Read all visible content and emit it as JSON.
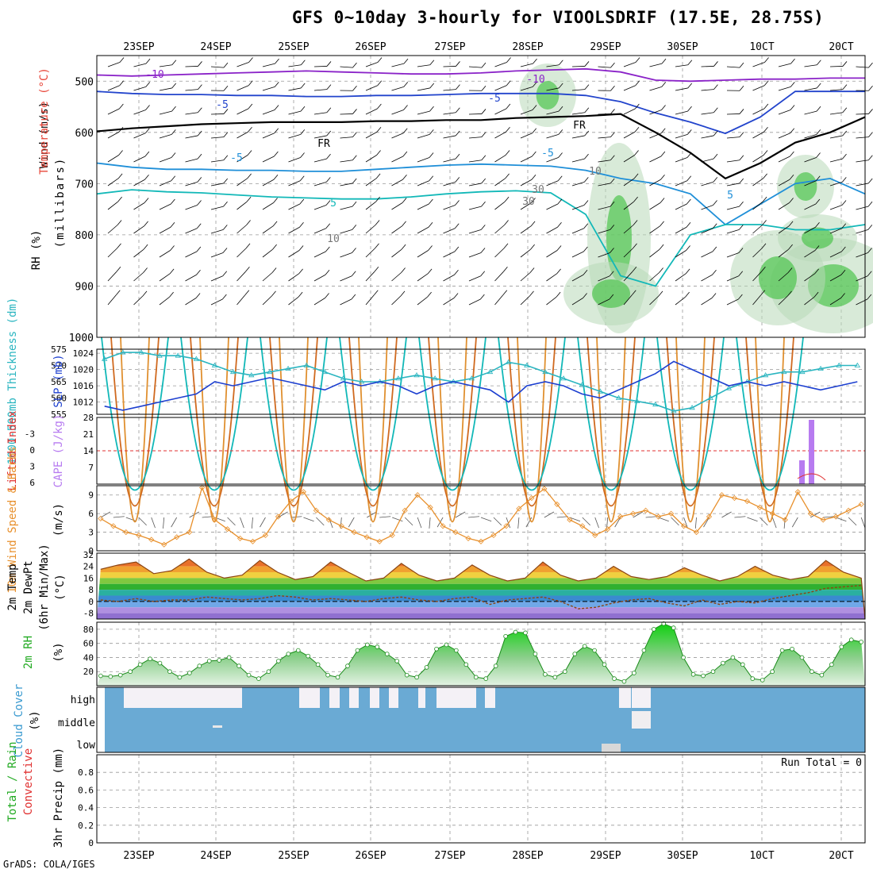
{
  "title": "GFS 0~10day 3-hourly for VIOOLSDRIF (17.5E, 28.75S)",
  "credit": "GrADS: COLA/IGES",
  "colors": {
    "rh_green": "#3cb44b",
    "temp_red": "#e8473a",
    "wind_black": "#000000",
    "slp_blue": "#1c3fd0",
    "thick_cyan": "#2ab5c0",
    "cape_purple": "#b77bf0",
    "li_red": "#e03030",
    "rh2m_green": "#22aa22",
    "cloud_blue": "#6aaad4",
    "cloud_white": "#f4f1f6",
    "conv_red": "#e03030",
    "total_green": "#22aa22"
  },
  "chart_data": [
    {
      "type": "heatmap",
      "name_panel": "upper-air",
      "ylabel": [
        "Wind (m/s)",
        "Temperature (°C)",
        "RH (%)"
      ],
      "yunit": "(millibars)",
      "x_ticks": [
        "23SEP",
        "24SEP",
        "25SEP",
        "26SEP",
        "27SEP",
        "28SEP",
        "29SEP",
        "30SEP",
        "1OCT",
        "2OCT"
      ],
      "x_tick_labels_printed": [
        "23SEP",
        "24SEP",
        "25SEP",
        "26SEP",
        "27SEP",
        "28SEP",
        "29SEP",
        "30SEP",
        "10CT",
        "20CT"
      ],
      "y_ticks": [
        500,
        600,
        700,
        800,
        900,
        1000
      ],
      "ylim": [
        450,
        1000
      ],
      "isotherm_labels": [
        "-10",
        "-10",
        "-5",
        "-5",
        "FR",
        "FR",
        "-5",
        "-5",
        "5",
        "5",
        "10",
        "30",
        "30",
        "10",
        "-5",
        "10"
      ],
      "isotherms": [
        {
          "label": "-10",
          "color": "#8a22c8",
          "p": [
            488,
            490,
            488,
            486,
            484,
            482,
            480,
            482,
            484,
            486,
            486,
            484,
            480,
            478,
            476,
            482,
            498,
            500,
            498,
            496,
            496,
            494,
            494
          ]
        },
        {
          "label": "-5",
          "color": "#2244cc",
          "p": [
            520,
            524,
            526,
            526,
            528,
            528,
            530,
            530,
            528,
            528,
            526,
            524,
            524,
            524,
            528,
            540,
            562,
            580,
            602,
            570,
            520,
            520,
            520
          ]
        },
        {
          "label": "FR",
          "color": "#000000",
          "p": [
            598,
            592,
            588,
            584,
            582,
            580,
            580,
            580,
            578,
            578,
            576,
            576,
            572,
            570,
            568,
            564,
            600,
            640,
            690,
            660,
            620,
            600,
            570
          ]
        },
        {
          "label": "5",
          "color": "#1f8fd8",
          "p": [
            660,
            668,
            672,
            672,
            674,
            674,
            676,
            676,
            672,
            668,
            664,
            662,
            664,
            666,
            674,
            690,
            700,
            720,
            780,
            740,
            700,
            690,
            720
          ]
        },
        {
          "label": "10",
          "color": "#12b8b8",
          "p": [
            720,
            712,
            716,
            718,
            722,
            726,
            728,
            730,
            730,
            726,
            720,
            716,
            714,
            718,
            760,
            880,
            900,
            800,
            780,
            780,
            790,
            790,
            780
          ]
        }
      ]
    },
    {
      "type": "line",
      "name_panel": "slp-thickness",
      "ylabel_left": "1000-500mb Thickness (dm)",
      "ylabel_right": "SLP (mb)",
      "left_ticks": [
        555,
        560,
        565,
        570,
        575
      ],
      "right_ticks": [
        1012,
        1016,
        1020,
        1024
      ],
      "left_range": [
        555,
        575
      ],
      "right_range": [
        1009,
        1025
      ],
      "series": [
        {
          "name": "1000-500mb Thickness",
          "color": "#2ab5c0",
          "axis": "left",
          "values": [
            572,
            574,
            574,
            573,
            573,
            572,
            570,
            568,
            567,
            568,
            569,
            570,
            568,
            566,
            565,
            565,
            566,
            567,
            566,
            565,
            566,
            568,
            571,
            570,
            568,
            566,
            564,
            562,
            560,
            559,
            558,
            556,
            557,
            560,
            563,
            565,
            567,
            568,
            568,
            569,
            570,
            570
          ]
        },
        {
          "name": "SLP",
          "color": "#1c3fd0",
          "axis": "right",
          "values": [
            1011,
            1010,
            1011,
            1012,
            1013,
            1014,
            1017,
            1016,
            1017,
            1018,
            1017,
            1016,
            1015,
            1017,
            1016,
            1017,
            1016,
            1014,
            1016,
            1017,
            1016,
            1015,
            1012,
            1016,
            1017,
            1016,
            1014,
            1013,
            1015,
            1017,
            1019,
            1022,
            1020,
            1018,
            1016,
            1017,
            1016,
            1017,
            1016,
            1015,
            1016,
            1017
          ]
        }
      ]
    },
    {
      "type": "bar",
      "name_panel": "cape-li",
      "ylabel_left": "Lifted Index",
      "ylabel_right": "CAPE (J/kg)",
      "cape_ticks": [
        7,
        14,
        21,
        28
      ],
      "li_ticks": [
        -3,
        0,
        3,
        6
      ],
      "li_tick_labels": [
        "-3",
        "0",
        "3",
        "6"
      ],
      "cape_range": [
        0,
        28
      ],
      "cape_bars": [
        {
          "x": "2OCT-0.45",
          "value": 10
        },
        {
          "x": "2OCT-0.35",
          "value": 27
        }
      ],
      "li_zero_line": 0
    },
    {
      "type": "line",
      "name_panel": "10m-wind",
      "ylabel": "10m Wind Speed & Barbs",
      "yunit": "(m/s)",
      "y_ticks": [
        0,
        3,
        6,
        9
      ],
      "ylim": [
        0,
        10.5
      ],
      "series": [
        {
          "name": "10m Wind Speed",
          "color": "#e8902c",
          "values": [
            5.2,
            4.0,
            3.0,
            2.5,
            1.8,
            1.0,
            2.2,
            3.0,
            10.2,
            5.0,
            3.5,
            2.0,
            1.5,
            2.5,
            5.5,
            8.0,
            9.5,
            6.5,
            5.0,
            4.0,
            3.0,
            2.2,
            1.5,
            2.5,
            6.5,
            9.0,
            7.0,
            4.0,
            3.0,
            2.0,
            1.5,
            2.5,
            4.0,
            6.8,
            8.5,
            10.0,
            7.5,
            5.0,
            4.0,
            2.5,
            3.5,
            5.5,
            6.0,
            6.5,
            5.5,
            6.0,
            4.0,
            3.0,
            5.5,
            9.0,
            8.5,
            8.0,
            7.0,
            6.0,
            5.0,
            9.5,
            6.0,
            5.0,
            5.5,
            6.5,
            7.5
          ]
        }
      ]
    },
    {
      "type": "area",
      "name_panel": "2m-temp",
      "ylabel": [
        "2m Temp",
        "2m DewPt",
        "(6hr Min/Max)"
      ],
      "yunit": "(°C)",
      "y_ticks": [
        -8,
        0,
        8,
        16,
        24,
        32
      ],
      "ylim": [
        -12,
        33
      ],
      "series": [
        {
          "name": "2m Temp",
          "color": "#8b4513",
          "values": [
            22,
            25,
            27,
            19,
            21,
            29,
            20,
            16,
            18,
            28,
            20,
            15,
            17,
            27,
            20,
            14,
            16,
            26,
            18,
            14,
            16,
            25,
            18,
            14,
            16,
            27,
            18,
            14,
            16,
            24,
            17,
            15,
            17,
            23,
            18,
            14,
            17,
            24,
            18,
            15,
            17,
            28,
            20,
            16
          ]
        },
        {
          "name": "2m DewPt",
          "color": "#8b4513",
          "values": [
            1,
            0,
            2,
            0,
            1,
            1,
            3,
            2,
            1,
            2,
            4,
            3,
            1,
            2,
            1,
            0,
            2,
            3,
            1,
            0,
            2,
            3,
            -2,
            1,
            2,
            3,
            0,
            -5,
            -4,
            -1,
            1,
            2,
            -1,
            -3,
            1,
            -2,
            0,
            -1,
            2,
            4,
            6,
            9,
            10,
            11
          ]
        }
      ]
    },
    {
      "type": "area",
      "name_panel": "2m-rh",
      "ylabel": "2m RH",
      "yunit": "(%)",
      "y_ticks": [
        20,
        40,
        60,
        80
      ],
      "ylim": [
        0,
        90
      ],
      "series": [
        {
          "name": "2m RH",
          "color": "#22aa22",
          "values": [
            14,
            13,
            15,
            20,
            30,
            38,
            32,
            20,
            12,
            18,
            28,
            35,
            36,
            40,
            28,
            15,
            10,
            20,
            35,
            45,
            50,
            42,
            30,
            15,
            12,
            28,
            50,
            58,
            55,
            45,
            35,
            15,
            12,
            26,
            52,
            58,
            50,
            30,
            12,
            10,
            28,
            70,
            76,
            75,
            45,
            16,
            12,
            20,
            45,
            56,
            50,
            30,
            10,
            6,
            18,
            50,
            80,
            88,
            82,
            40,
            16,
            14,
            20,
            32,
            40,
            30,
            10,
            8,
            20,
            50,
            52,
            40,
            20,
            15,
            30,
            55,
            65,
            62
          ]
        }
      ]
    },
    {
      "type": "heatmap",
      "name_panel": "cloud-cover",
      "ylabel": "Cloud Cover",
      "yunit": "(%)",
      "y_tick_labels": [
        "high",
        "middle",
        "low"
      ]
    },
    {
      "type": "bar",
      "name_panel": "precip",
      "ylabel": [
        "Total / Rain",
        "Convective",
        "3hr Precip (mm)"
      ],
      "y_ticks": [
        0,
        0.2,
        0.4,
        0.6,
        0.8
      ],
      "ylim": [
        0,
        1.0
      ],
      "annotation": "Run Total = 0",
      "values": []
    }
  ]
}
